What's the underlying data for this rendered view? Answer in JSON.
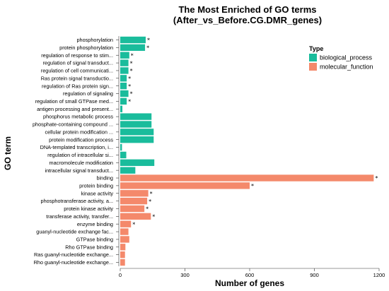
{
  "chart_data": {
    "type": "bar",
    "orientation": "horizontal",
    "title": [
      "The Most Enriched of GO terms",
      "(After_vs_Before.CG.DMR_genes)"
    ],
    "xlabel": "Number of genes",
    "ylabel": "GO term",
    "xlim": [
      0,
      1200
    ],
    "xticks": [
      0,
      300,
      600,
      900,
      1200
    ],
    "grid": false,
    "legend_position": "top-right",
    "legend": {
      "title": "Type",
      "entries": [
        {
          "name": "biological_process",
          "color": "#1abc9c"
        },
        {
          "name": "molecular_function",
          "color": "#f4896b"
        }
      ]
    },
    "categories": [
      "phosphorylation",
      "protein phosphorylation",
      "regulation of response to stim...",
      "regulation of signal transduct...",
      "regulation of cell communicati...",
      "Ras protein signal transductio...",
      "regulation of Ras protein sign...",
      "regulation of signaling",
      "regulation of small GTPase med...",
      "antigen processing and present...",
      "phosphorus metabolic process",
      "phosphate-containing compound ...",
      "cellular protein modification ...",
      "protein modification process",
      "DNA-templated transcription, i...",
      "regulation of intracellular si...",
      "macromolecule modification",
      "intracellular signal transduct...",
      "binding",
      "protein binding",
      "kinase activity",
      "phosphotransferase activity, a...",
      "protein kinase activity",
      "transferase activity, transfer...",
      "enzyme binding",
      "guanyl-nucleotide exchange fac...",
      "GTPase binding",
      "Rho GTPase binding",
      "Ras guanyl-nucleotide exchange...",
      "Rho guanyl-nucleotide exchange..."
    ],
    "values": [
      118,
      115,
      42,
      38,
      38,
      30,
      30,
      38,
      30,
      10,
      145,
      145,
      155,
      155,
      8,
      28,
      158,
      70,
      1175,
      600,
      130,
      125,
      112,
      142,
      50,
      38,
      42,
      24,
      22,
      22
    ],
    "types": [
      "biological_process",
      "biological_process",
      "biological_process",
      "biological_process",
      "biological_process",
      "biological_process",
      "biological_process",
      "biological_process",
      "biological_process",
      "biological_process",
      "biological_process",
      "biological_process",
      "biological_process",
      "biological_process",
      "biological_process",
      "biological_process",
      "biological_process",
      "biological_process",
      "molecular_function",
      "molecular_function",
      "molecular_function",
      "molecular_function",
      "molecular_function",
      "molecular_function",
      "molecular_function",
      "molecular_function",
      "molecular_function",
      "molecular_function",
      "molecular_function",
      "molecular_function"
    ],
    "significant": [
      true,
      true,
      true,
      true,
      true,
      true,
      true,
      true,
      true,
      false,
      false,
      false,
      false,
      false,
      false,
      false,
      false,
      false,
      true,
      true,
      true,
      true,
      true,
      true,
      true,
      false,
      false,
      false,
      false,
      false
    ],
    "significance_marker": "*"
  }
}
